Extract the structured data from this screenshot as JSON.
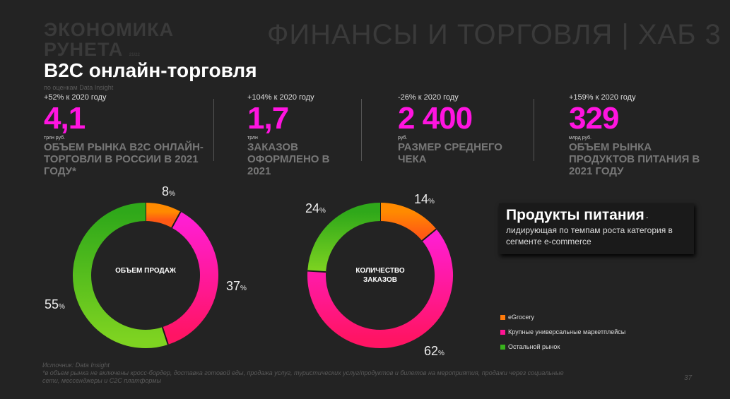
{
  "header": {
    "logo": "ЭКОНОМИКА РУНЕТА",
    "logo_year": "21/22",
    "hub": "ФИНАНСЫ И ТОРГОВЛЯ | ХАБ 3"
  },
  "title": "B2C онлайн-торговля",
  "note": "по оценкам Data Insight",
  "stats": [
    {
      "change": "+52% к 2020 году",
      "value": "4,1",
      "unit": "трлн руб.",
      "label": "ОБЪЕМ РЫНКА B2C ОНЛАЙН-ТОРГОВЛИ В РОССИИ В 2021 ГОДУ*"
    },
    {
      "change": "+104% к 2020 году",
      "value": "1,7",
      "unit": "трлн",
      "label": "ЗАКАЗОВ ОФОРМЛЕНО В 2021"
    },
    {
      "change": "-26% к 2020 году",
      "value": "2 400",
      "unit": "руб.",
      "label": "РАЗМЕР СРЕДНЕГО ЧЕКА"
    },
    {
      "change": "+159% к 2020 году",
      "value": "329",
      "unit": "млрд руб.",
      "label": "ОБЪЕМ РЫНКА ПРОДУКТОВ ПИТАНИЯ В 2021 ГОДУ"
    }
  ],
  "chart_data": [
    {
      "type": "pie",
      "title": "ОБЪЕМ ПРОДАЖ",
      "categories": [
        "eGrocery",
        "Крупные универсальные маркетплейсы",
        "Остальной рынок"
      ],
      "values": [
        8,
        37,
        55
      ],
      "value_labels": [
        "8",
        "37",
        "55"
      ]
    },
    {
      "type": "pie",
      "title": "КОЛИЧЕСТВО ЗАКАЗОВ",
      "categories": [
        "eGrocery",
        "Крупные универсальные маркетплейсы",
        "Остальной рынок"
      ],
      "values": [
        14,
        62,
        24
      ],
      "value_labels": [
        "14",
        "62",
        "24"
      ]
    }
  ],
  "colors": [
    "#ff7a0a",
    "#ff1493",
    "#38b21c"
  ],
  "pct": "%",
  "callout": {
    "heading": "Продукты питания",
    "dash": " -",
    "text": "лидирующая по темпам роста категория в сегменте e-commerce"
  },
  "legend": [
    "eGrocery",
    "Крупные универсальные маркетплейсы",
    "Остальной рынок"
  ],
  "footer": {
    "source": "Источник: Data Insight",
    "note": "*в объем рынка не включены кросс-бордер, доставка готовой еды, продажа услуг, туристических услуг/продуктов и билетов на мероприятия, продажи через социальные сети, мессенджеры и C2C платформы"
  },
  "page": "37"
}
